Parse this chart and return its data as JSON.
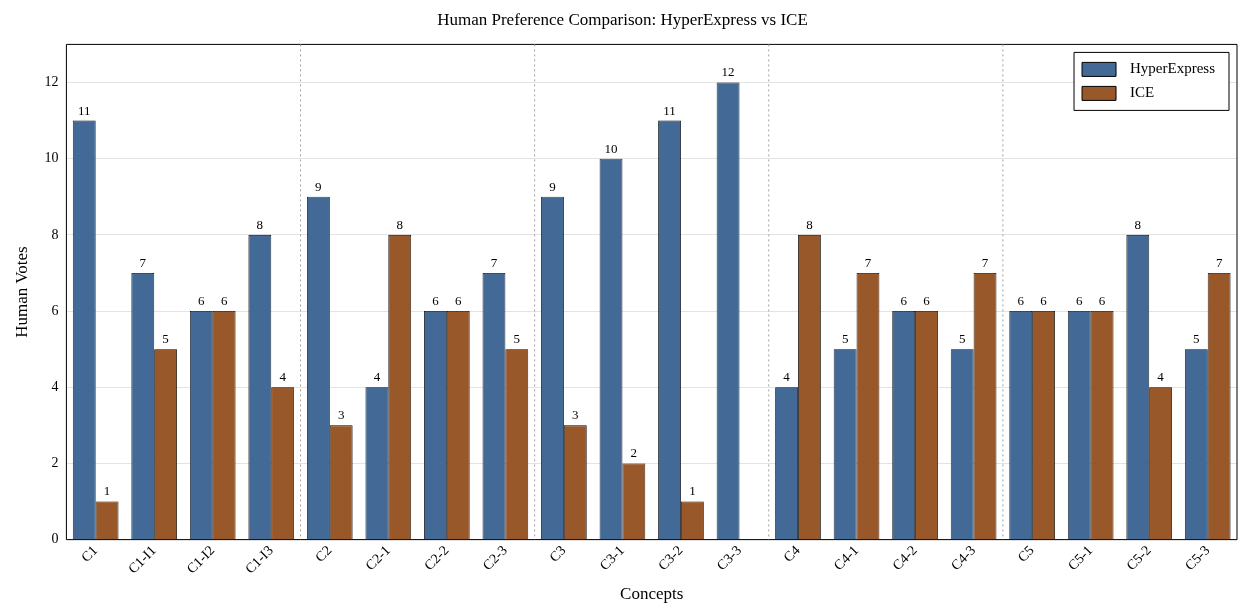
{
  "chart_data": {
    "type": "bar",
    "title": "Human Preference Comparison: HyperExpress vs ICE",
    "xlabel": "Concepts",
    "ylabel": "Human Votes",
    "categories": [
      "C1",
      "C1-I1",
      "C1-I2",
      "C1-I3",
      "C2",
      "C2-1",
      "C2-2",
      "C2-3",
      "C3",
      "C3-1",
      "C3-2",
      "C3-3",
      "C4",
      "C4-1",
      "C4-2",
      "C4-3",
      "C5",
      "C5-1",
      "C5-2",
      "C5-3"
    ],
    "series": [
      {
        "name": "HyperExpress",
        "color": "#436a96",
        "values": [
          11,
          7,
          6,
          8,
          9,
          4,
          6,
          7,
          9,
          10,
          11,
          12,
          4,
          5,
          6,
          5,
          6,
          6,
          8,
          5
        ]
      },
      {
        "name": "ICE",
        "color": "#99582a",
        "values": [
          1,
          5,
          6,
          4,
          3,
          8,
          6,
          5,
          3,
          2,
          1,
          null,
          8,
          7,
          6,
          7,
          6,
          6,
          4,
          7
        ]
      }
    ],
    "ylim": [
      0,
      13
    ],
    "yticks": [
      0,
      2,
      4,
      6,
      8,
      10,
      12
    ],
    "grid": "y",
    "legend": "top right",
    "data_labels": true
  }
}
